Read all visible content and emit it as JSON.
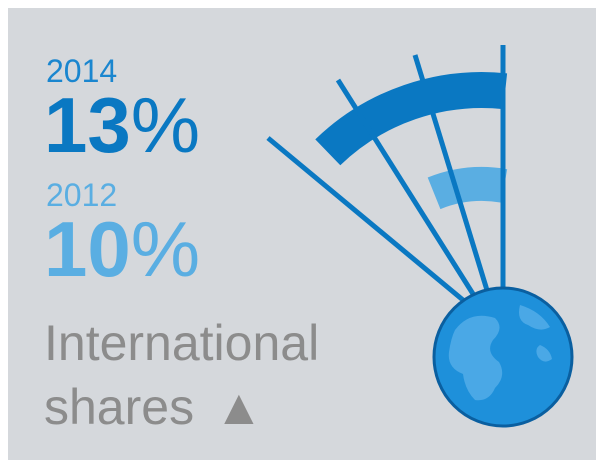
{
  "items": [
    {
      "year": "2014",
      "value": "13",
      "unit": "%"
    },
    {
      "year": "2012",
      "value": "10",
      "unit": "%"
    }
  ],
  "label": {
    "line1": "International",
    "line2": "shares",
    "marker": "▲"
  }
}
